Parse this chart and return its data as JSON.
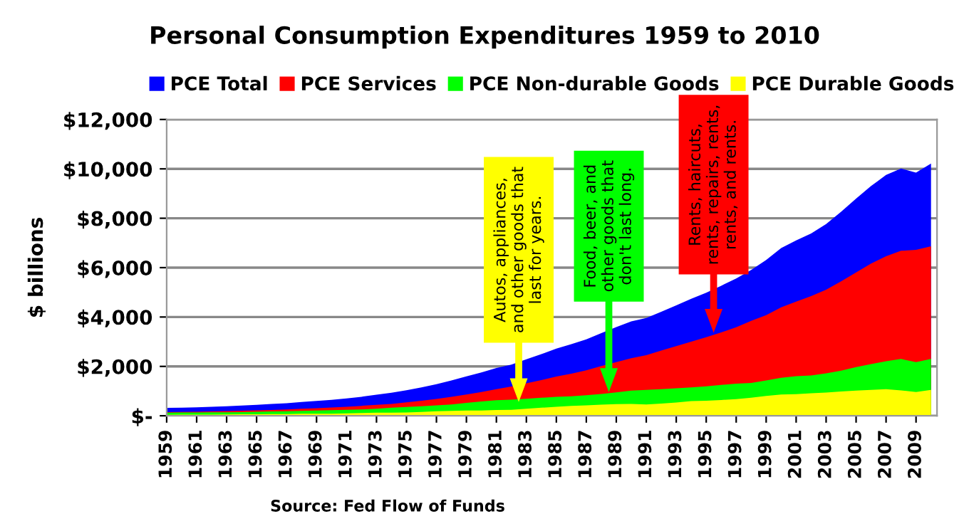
{
  "chart_data": {
    "type": "area",
    "title": "Personal Consumption Expenditures 1959 to 2010",
    "ylabel": "$ billions",
    "x": [
      1959,
      1960,
      1961,
      1962,
      1963,
      1964,
      1965,
      1966,
      1967,
      1968,
      1969,
      1970,
      1971,
      1972,
      1973,
      1974,
      1975,
      1976,
      1977,
      1978,
      1979,
      1980,
      1981,
      1982,
      1983,
      1984,
      1985,
      1986,
      1987,
      1988,
      1989,
      1990,
      1991,
      1992,
      1993,
      1994,
      1995,
      1996,
      1997,
      1998,
      1999,
      2000,
      2001,
      2002,
      2003,
      2004,
      2005,
      2006,
      2007,
      2008,
      2009,
      2010
    ],
    "series": [
      {
        "name": "PCE Total",
        "color": "#0000ff",
        "values": [
          318,
          331,
          342,
          363,
          383,
          411,
          444,
          481,
          509,
          559,
          604,
          648,
          702,
          770,
          853,
          933,
          1034,
          1151,
          1279,
          1428,
          1593,
          1755,
          1938,
          2074,
          2287,
          2498,
          2723,
          2898,
          3092,
          3347,
          3593,
          3826,
          3960,
          4215,
          4471,
          4741,
          4984,
          5268,
          5560,
          5903,
          6307,
          6792,
          7103,
          7385,
          7765,
          8260,
          8794,
          9304,
          9751,
          10013,
          9847,
          10215
        ]
      },
      {
        "name": "PCE Services",
        "color": "#ff0000",
        "values": [
          148,
          156,
          165,
          176,
          188,
          202,
          219,
          236,
          256,
          281,
          306,
          335,
          366,
          403,
          441,
          480,
          542,
          608,
          678,
          767,
          859,
          961,
          1077,
          1184,
          1316,
          1442,
          1590,
          1705,
          1841,
          2014,
          2171,
          2329,
          2454,
          2642,
          2821,
          3000,
          3183,
          3377,
          3585,
          3843,
          4077,
          4392,
          4625,
          4845,
          5105,
          5444,
          5804,
          6164,
          6461,
          6683,
          6717,
          6865
        ]
      },
      {
        "name": "PCE Non-durable Goods",
        "color": "#00ff00",
        "values": [
          127,
          130,
          133,
          138,
          142,
          151,
          162,
          177,
          183,
          198,
          213,
          228,
          238,
          256,
          288,
          330,
          358,
          385,
          420,
          460,
          520,
          580,
          630,
          650,
          690,
          730,
          770,
          790,
          830,
          880,
          950,
          1020,
          1050,
          1080,
          1110,
          1150,
          1190,
          1250,
          1300,
          1330,
          1430,
          1540,
          1600,
          1630,
          1720,
          1830,
          1970,
          2090,
          2210,
          2300,
          2170,
          2300
        ]
      },
      {
        "name": "PCE Durable Goods",
        "color": "#ffff00",
        "values": [
          43,
          45,
          44,
          49,
          53,
          58,
          63,
          68,
          70,
          80,
          85,
          85,
          98,
          111,
          124,
          123,
          134,
          158,
          181,
          201,
          214,
          214,
          231,
          240,
          281,
          326,
          363,
          403,
          421,
          453,
          472,
          477,
          456,
          493,
          540,
          591,
          611,
          641,
          675,
          730,
          800,
          860,
          878,
          910,
          940,
          986,
          1020,
          1050,
          1080,
          1030,
          960,
          1050
        ]
      }
    ],
    "xlim": [
      1959,
      2010.4
    ],
    "xticks": [
      1959,
      1961,
      1963,
      1965,
      1967,
      1969,
      1971,
      1973,
      1975,
      1977,
      1979,
      1981,
      1983,
      1985,
      1987,
      1989,
      1991,
      1993,
      1995,
      1997,
      1999,
      2001,
      2003,
      2005,
      2007,
      2009
    ],
    "ylim": [
      0,
      12000
    ],
    "yticks": [
      {
        "value": 0,
        "label": "$-"
      },
      {
        "value": 2000,
        "label": "$2,000"
      },
      {
        "value": 4000,
        "label": "$4,000"
      },
      {
        "value": 6000,
        "label": "$6,000"
      },
      {
        "value": 8000,
        "label": "$8,000"
      },
      {
        "value": 10000,
        "label": "$10,000"
      },
      {
        "value": 12000,
        "label": "$12,000"
      }
    ],
    "grid": "y",
    "legend": "top",
    "annotations": [
      "Autos, appliances,\nand other goods that\nlast for years.",
      "Food, beer, and\nother goods that\ndon't last long.",
      "Rents, haircuts,\nrents, repairs, rents,\nrents, and rents.",
      "Source: Fed Flow of Funds"
    ]
  }
}
